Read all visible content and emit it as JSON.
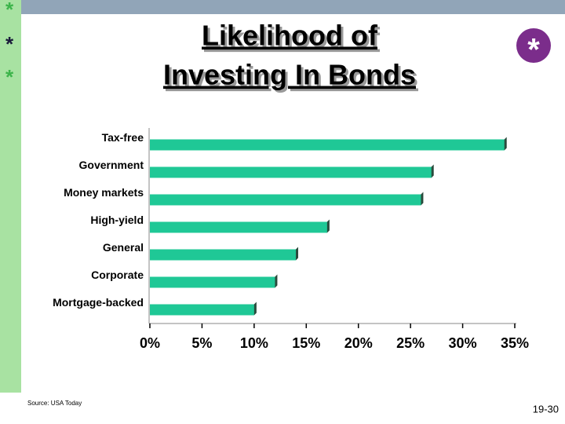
{
  "chart_data": {
    "type": "bar",
    "orientation": "horizontal",
    "title": [
      "Likelihood of",
      "Investing In Bonds"
    ],
    "categories": [
      "Tax-free",
      "Government",
      "Money markets",
      "High-yield",
      "General",
      "Corporate",
      "Mortgage-backed"
    ],
    "values": [
      34,
      27,
      26,
      17,
      14,
      12,
      10
    ],
    "color": "#1fc896",
    "xlim": [
      0,
      35
    ],
    "xticks": [
      {
        "value": 0,
        "label": "0%"
      },
      {
        "value": 5,
        "label": "5%"
      },
      {
        "value": 10,
        "label": "10%"
      },
      {
        "value": 15,
        "label": "15%"
      },
      {
        "value": 20,
        "label": "20%"
      },
      {
        "value": 25,
        "label": "25%"
      },
      {
        "value": 30,
        "label": "30%"
      },
      {
        "value": 35,
        "label": "35%"
      }
    ],
    "grid": false
  },
  "footer": {
    "source": "Source: USA Today",
    "page": "19-30"
  }
}
